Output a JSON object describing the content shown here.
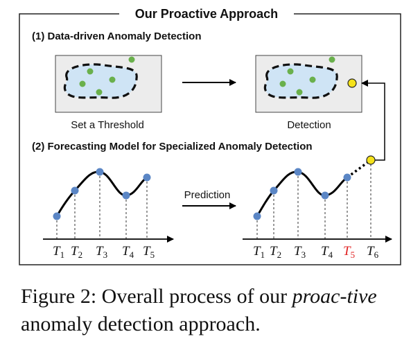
{
  "title": "Our Proactive Approach",
  "section1": {
    "heading": "(1) Data-driven Anomaly Detection",
    "left_caption": "Set a Threshold",
    "right_caption": "Detection"
  },
  "section2": {
    "heading": "(2) Forecasting Model for Specialized Anomaly Detection",
    "arrow_label": "Prediction",
    "left_ticks": [
      {
        "base": "T",
        "sub": "1"
      },
      {
        "base": "T",
        "sub": "2"
      },
      {
        "base": "T",
        "sub": "3"
      },
      {
        "base": "T",
        "sub": "4"
      },
      {
        "base": "T",
        "sub": "5"
      }
    ],
    "right_ticks": [
      {
        "base": "T",
        "sub": "1"
      },
      {
        "base": "T",
        "sub": "2"
      },
      {
        "base": "T",
        "sub": "3"
      },
      {
        "base": "T",
        "sub": "4"
      },
      {
        "base": "T",
        "sub": "5",
        "highlight": true
      },
      {
        "base": "T",
        "sub": "6"
      }
    ]
  },
  "caption": {
    "prefix": "Figure 2: Overall process of our ",
    "emphasis": "proac-tive",
    "suffix": " anomaly detection approach."
  },
  "colors": {
    "point": "#5b86c5",
    "green_point": "#6ab04c",
    "anomaly_point": "#f5e21b",
    "highlight_tick": "#e02020",
    "panel_fill": "#ececec",
    "blob_fill": "#cfe4f5"
  }
}
